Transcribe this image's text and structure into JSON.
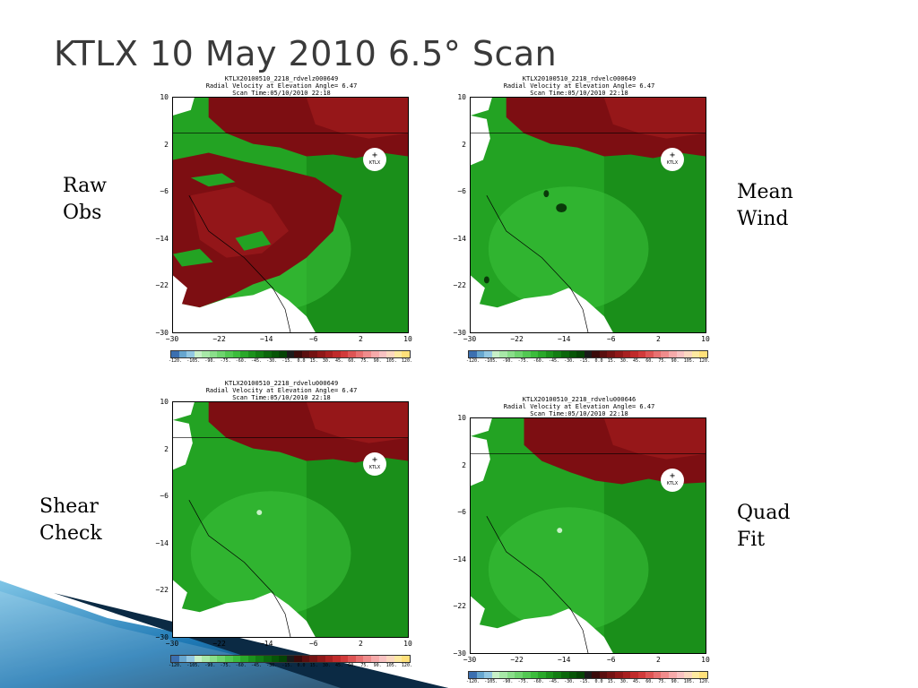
{
  "slide": {
    "title": "KTLX 10 May 2010 6.5° Scan"
  },
  "colors": {
    "title": "#3a3a3a",
    "green_bright": "#3cc23c",
    "green_mid": "#23a323",
    "green_dark": "#1a8f1a",
    "red_dark": "#7d0e12",
    "red_mid": "#9c1a1c",
    "wedge_dark": "#0b2a44",
    "wedge_blue": "#1e78b4",
    "wedge_light": "#7fc5e6"
  },
  "panels": [
    {
      "label": [
        "Raw",
        "Obs"
      ],
      "header": [
        "KTLX20100510_2218_rdvelz000649",
        "Radial Velocity at Elevation Angle=  6.47",
        "Scan Time:05/10/2010  22:18"
      ],
      "variant": "raw"
    },
    {
      "label": [
        "Mean",
        "Wind"
      ],
      "header": [
        "KTLX20100510_2218_rdvelc000649",
        "Radial Velocity at Elevation Angle=  6.47",
        "Scan Time:05/10/2010  22:18"
      ],
      "variant": "mean"
    },
    {
      "label": [
        "Shear",
        "Check"
      ],
      "header": [
        "KTLX20100510_2218_rdvelu000649",
        "Radial Velocity at Elevation Angle=  6.47",
        "Scan Time:05/10/2010  22:18"
      ],
      "variant": "shear"
    },
    {
      "label": [
        "Quad",
        "Fit"
      ],
      "header": [
        "KTLX20100510_2218_rdvelu000646",
        "Radial Velocity at Elevation Angle=  6.47",
        "Scan Time:05/10/2010  22:18"
      ],
      "variant": "quad"
    }
  ],
  "axes": {
    "y_ticks": [
      "10",
      "2",
      "−6",
      "−14",
      "−22",
      "−30"
    ],
    "x_ticks": [
      "−30",
      "−22",
      "−14",
      "−6",
      "2",
      "10"
    ]
  },
  "radar_site": "KTLX",
  "colorbar": {
    "ticks": [
      "-120.",
      "-105.",
      "-90.",
      "-75.",
      "-60.",
      "-45.",
      "-30.",
      "-15.",
      "0.0",
      "15.",
      "30.",
      "45.",
      "60.",
      "75.",
      "90.",
      "105.",
      "120."
    ],
    "colors": [
      "#3b6fb0",
      "#67a6cf",
      "#92c7e2",
      "#c8f0c8",
      "#a8e8a8",
      "#8ade8a",
      "#6ed46e",
      "#52c852",
      "#3cbc3c",
      "#2aa82a",
      "#1c921c",
      "#137d13",
      "#0c670c",
      "#075507",
      "#054405",
      "#1a1a1a",
      "#3a0a0a",
      "#5a0f0f",
      "#741313",
      "#8f1818",
      "#a82020",
      "#c02b2b",
      "#d13a3a",
      "#de5454",
      "#e87070",
      "#f08c8c",
      "#f6aaaa",
      "#f9c2c2",
      "#fcd8c0",
      "#fde9a0",
      "#ffe07a"
    ]
  }
}
